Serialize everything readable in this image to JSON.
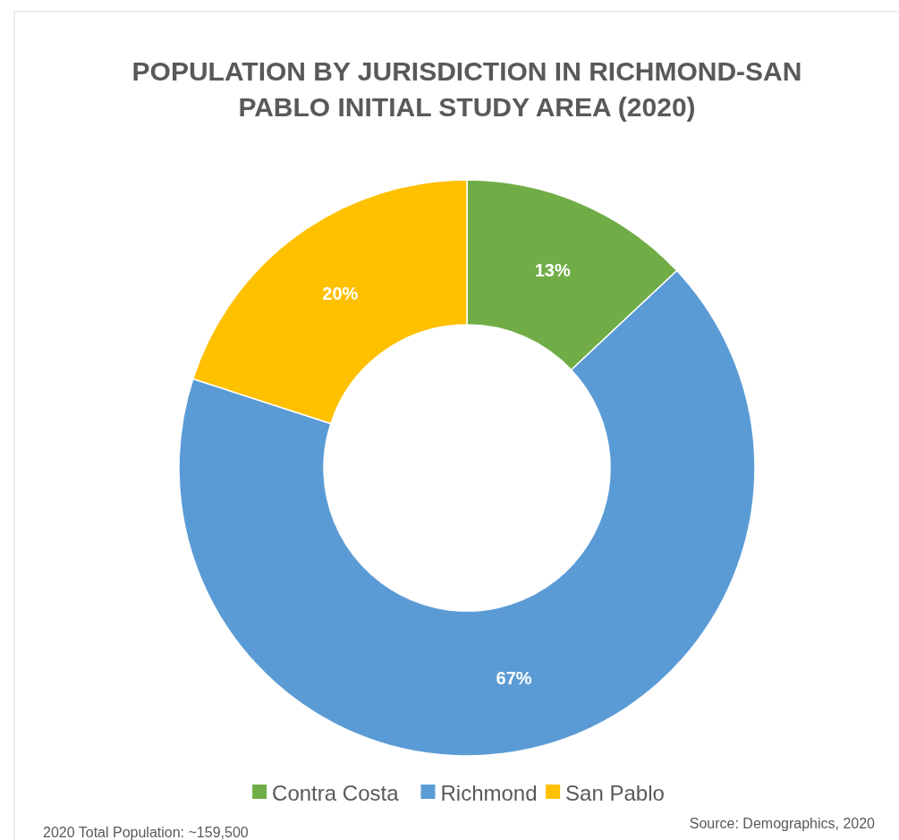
{
  "chart_data": {
    "type": "donut",
    "title": "POPULATION BY JURISDICTION IN RICHMOND-SAN PABLO INITIAL STUDY AREA (2020)",
    "categories": [
      "Contra Costa",
      "Richmond",
      "San Pablo"
    ],
    "values": [
      13,
      67,
      20
    ],
    "colors": [
      "#70ad47",
      "#5b9bd5",
      "#ffc000"
    ],
    "value_labels": [
      "13%",
      "67%",
      "20%"
    ],
    "legend": "bottom",
    "annotations": [
      "2020 Total Population: ~159,500",
      "Source: Demographics, 2020"
    ]
  }
}
